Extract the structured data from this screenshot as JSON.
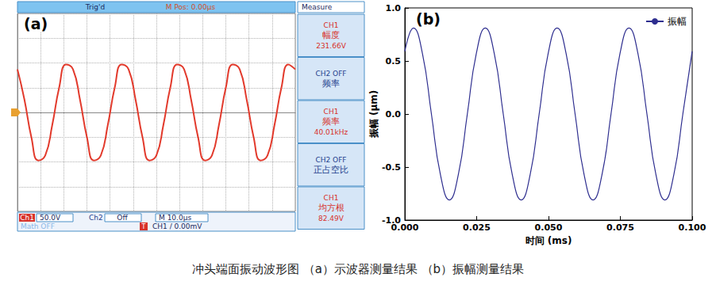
{
  "caption": "冲头端面振动波形图 （a）示波器测量结果 （b）振幅测量结果",
  "chart_data": [
    {
      "type": "line",
      "title": "(a)",
      "x": [
        0,
        3,
        6,
        9,
        12,
        15,
        18,
        21,
        24,
        27,
        30,
        33,
        36,
        39,
        42,
        45,
        48,
        51,
        54,
        57,
        60,
        63,
        66,
        69,
        72,
        75,
        78,
        81,
        84,
        87,
        90,
        93,
        96,
        99,
        102,
        105,
        108,
        111,
        114,
        117,
        120
      ],
      "series": [
        {
          "color": "#e23a2c",
          "values": [
            87,
            26,
            -50,
            -97,
            -87,
            -26,
            50,
            97,
            87,
            26,
            -50,
            -97,
            -87,
            -26,
            50,
            97,
            87,
            26,
            -50,
            -97,
            -87,
            -26,
            50,
            97,
            87,
            26,
            -50,
            -97,
            -87,
            -26,
            50,
            97,
            87,
            26,
            -50,
            -97,
            -87,
            -26,
            50,
            97,
            87
          ]
        }
      ],
      "xlim": [
        0,
        120
      ],
      "xticks": [
        0,
        10,
        20,
        30,
        40,
        50,
        60,
        70,
        80,
        90,
        100,
        110,
        120
      ],
      "ylim": [
        -200,
        200
      ],
      "yticks": [
        -200,
        -150,
        -100,
        -50,
        0,
        50,
        100,
        150,
        200
      ],
      "grid": true,
      "tick_labels": false,
      "annotations": {
        "trigger_status": "Trig'd",
        "m_pos": "M Pos: 0.00μs",
        "measure": "Measure",
        "measure_cells": [
          [
            "CH1",
            "幅度",
            "231.66V"
          ],
          [
            "CH2 OFF",
            "频率"
          ],
          [
            "CH1",
            "频率",
            "40.01kHz"
          ],
          [
            "CH2 OFF",
            "正占空比"
          ],
          [
            "CH1",
            "均方根",
            "82.49V"
          ]
        ],
        "ch1_label": "Ch1",
        "ch1_scale": "50.0V",
        "ch2_label": "Ch2",
        "ch2_state": "Off",
        "time_base": "M 10.0μs",
        "math": "Math OFF",
        "trig_icon": "T",
        "trigger": "CH1 / 0.00mV"
      }
    },
    {
      "type": "line",
      "title": "(b)",
      "x_label": "时间 (ms)",
      "y_label": "振幅 (μm)",
      "x": [
        0,
        0.003,
        0.006125,
        0.00925,
        0.012375,
        0.0155,
        0.018625,
        0.02175,
        0.024875,
        0.028,
        0.031125,
        0.03425,
        0.037375,
        0.0405,
        0.043625,
        0.04675,
        0.049875,
        0.053,
        0.056125,
        0.05925,
        0.062375,
        0.0655,
        0.068625,
        0.07175,
        0.074875,
        0.078,
        0.081125,
        0.08425,
        0.087375,
        0.0905,
        0.093625,
        0.09675,
        0.099875,
        0.1
      ],
      "series": [
        {
          "name": "振幅",
          "color": "#2e2e8f",
          "values": [
            0.59,
            0.81,
            0.57,
            0,
            -0.57,
            -0.81,
            -0.57,
            0,
            0.57,
            0.81,
            0.57,
            0,
            -0.57,
            -0.81,
            -0.57,
            0,
            0.57,
            0.81,
            0.57,
            0,
            -0.57,
            -0.81,
            -0.57,
            0,
            0.57,
            0.81,
            0.57,
            0,
            -0.57,
            -0.81,
            -0.57,
            0,
            0.57,
            0.59
          ]
        }
      ],
      "xlim": [
        0,
        0.1
      ],
      "xticks": [
        {
          "value": 0,
          "label": "0.000"
        },
        {
          "value": 0.025,
          "label": "0.025"
        },
        {
          "value": 0.05,
          "label": "0.050"
        },
        {
          "value": 0.075,
          "label": "0.075"
        },
        {
          "value": 0.1,
          "label": "0.100"
        }
      ],
      "ylim": [
        -1,
        1
      ],
      "yticks": [
        {
          "value": -1,
          "label": "-1.0"
        },
        -0.5,
        {
          "value": 0,
          "label": "0.0"
        },
        0.5,
        {
          "value": 1,
          "label": "1.0"
        }
      ],
      "grid": false,
      "legend": "upper right"
    }
  ]
}
